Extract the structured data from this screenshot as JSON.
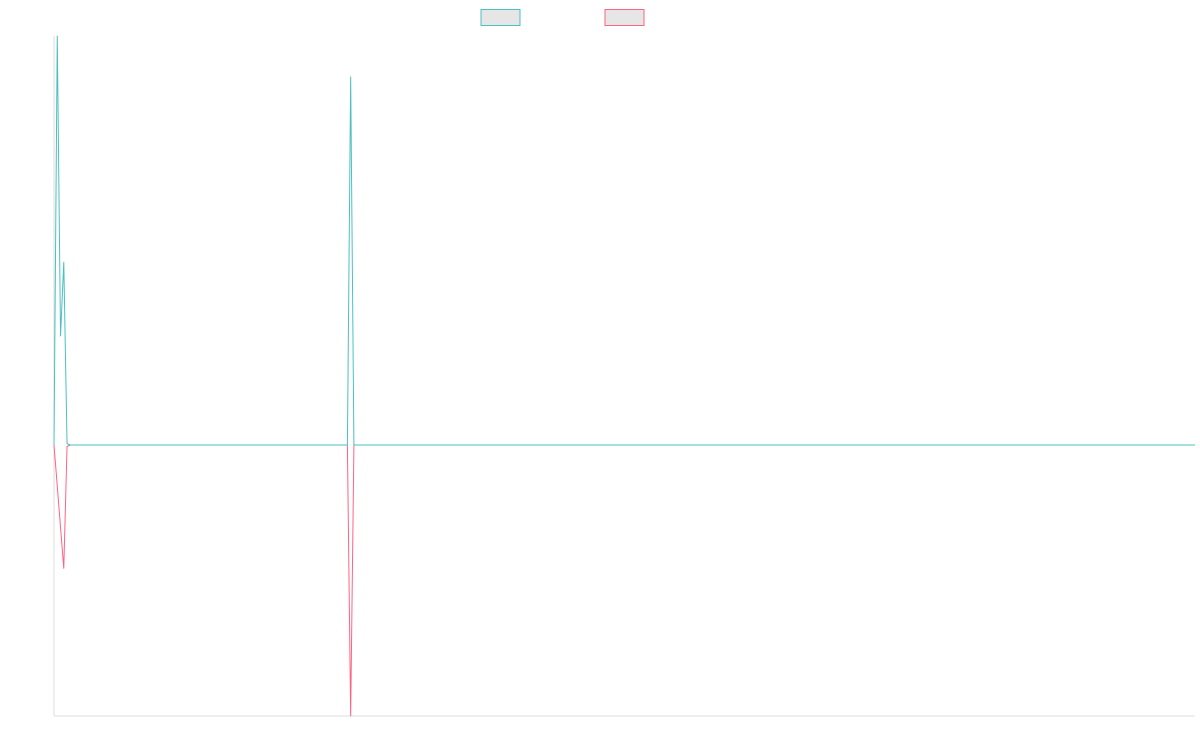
{
  "chart_data": {
    "type": "line",
    "title": "",
    "xlabel": "",
    "ylabel": "",
    "x_range": [
      0,
      350
    ],
    "y_range": [
      -1.0,
      1.5
    ],
    "grid": false,
    "legend_position": "top-center",
    "legend_labels_visible": false,
    "series": [
      {
        "color": "#4bc0c0",
        "points": [
          [
            0,
            0
          ],
          [
            1,
            1.5
          ],
          [
            2,
            0.4
          ],
          [
            3,
            0.67
          ],
          [
            4,
            0.005
          ],
          [
            5,
            0
          ],
          [
            90,
            0
          ],
          [
            91,
            1.35
          ],
          [
            92,
            0
          ],
          [
            350,
            0
          ]
        ]
      },
      {
        "color": "#ff6384",
        "points": [
          [
            0,
            0
          ],
          [
            3,
            -0.455
          ],
          [
            4,
            -0.005
          ],
          [
            5,
            0
          ],
          [
            90,
            0
          ],
          [
            91,
            -1.0
          ],
          [
            92,
            0
          ],
          [
            350,
            0
          ]
        ]
      }
    ]
  },
  "legend": {
    "items": [
      {
        "stroke": "#4bc0c0",
        "fill": "#e6e6e6"
      },
      {
        "stroke": "#ff6384",
        "fill": "#e6e6e6"
      }
    ]
  }
}
